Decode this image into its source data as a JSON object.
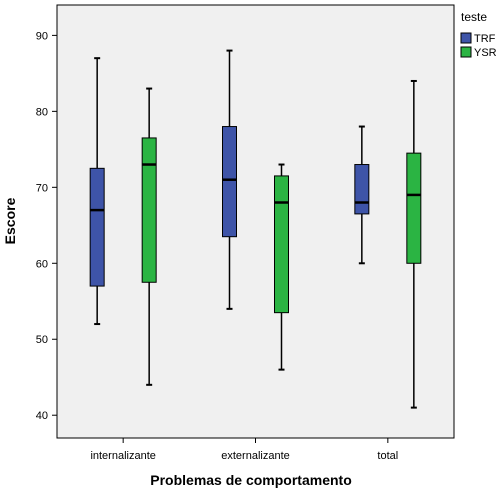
{
  "chart_data": {
    "type": "boxplot",
    "title": "",
    "xlabel": "Problemas de comportamento",
    "ylabel": "Escore",
    "ylim": [
      37,
      94
    ],
    "yticks": [
      40,
      50,
      60,
      70,
      80,
      90
    ],
    "categories": [
      "internalizante",
      "externalizante",
      "total"
    ],
    "legend": {
      "title": "teste",
      "placement": "right"
    },
    "grid": false,
    "series": [
      {
        "name": "TRF",
        "color": "#3e54a8",
        "boxes": [
          {
            "min": 52,
            "q1": 57,
            "median": 67,
            "q3": 72.5,
            "max": 87
          },
          {
            "min": 54,
            "q1": 63.5,
            "median": 71,
            "q3": 78,
            "max": 88
          },
          {
            "min": 60,
            "q1": 66.5,
            "median": 68,
            "q3": 73,
            "max": 78
          }
        ]
      },
      {
        "name": "YSR",
        "color": "#2bb443",
        "boxes": [
          {
            "min": 44,
            "q1": 57.5,
            "median": 73,
            "q3": 76.5,
            "max": 83
          },
          {
            "min": 46,
            "q1": 53.5,
            "median": 68,
            "q3": 71.5,
            "max": 73
          },
          {
            "min": 41,
            "q1": 60,
            "median": 69,
            "q3": 74.5,
            "max": 84
          }
        ]
      }
    ]
  }
}
